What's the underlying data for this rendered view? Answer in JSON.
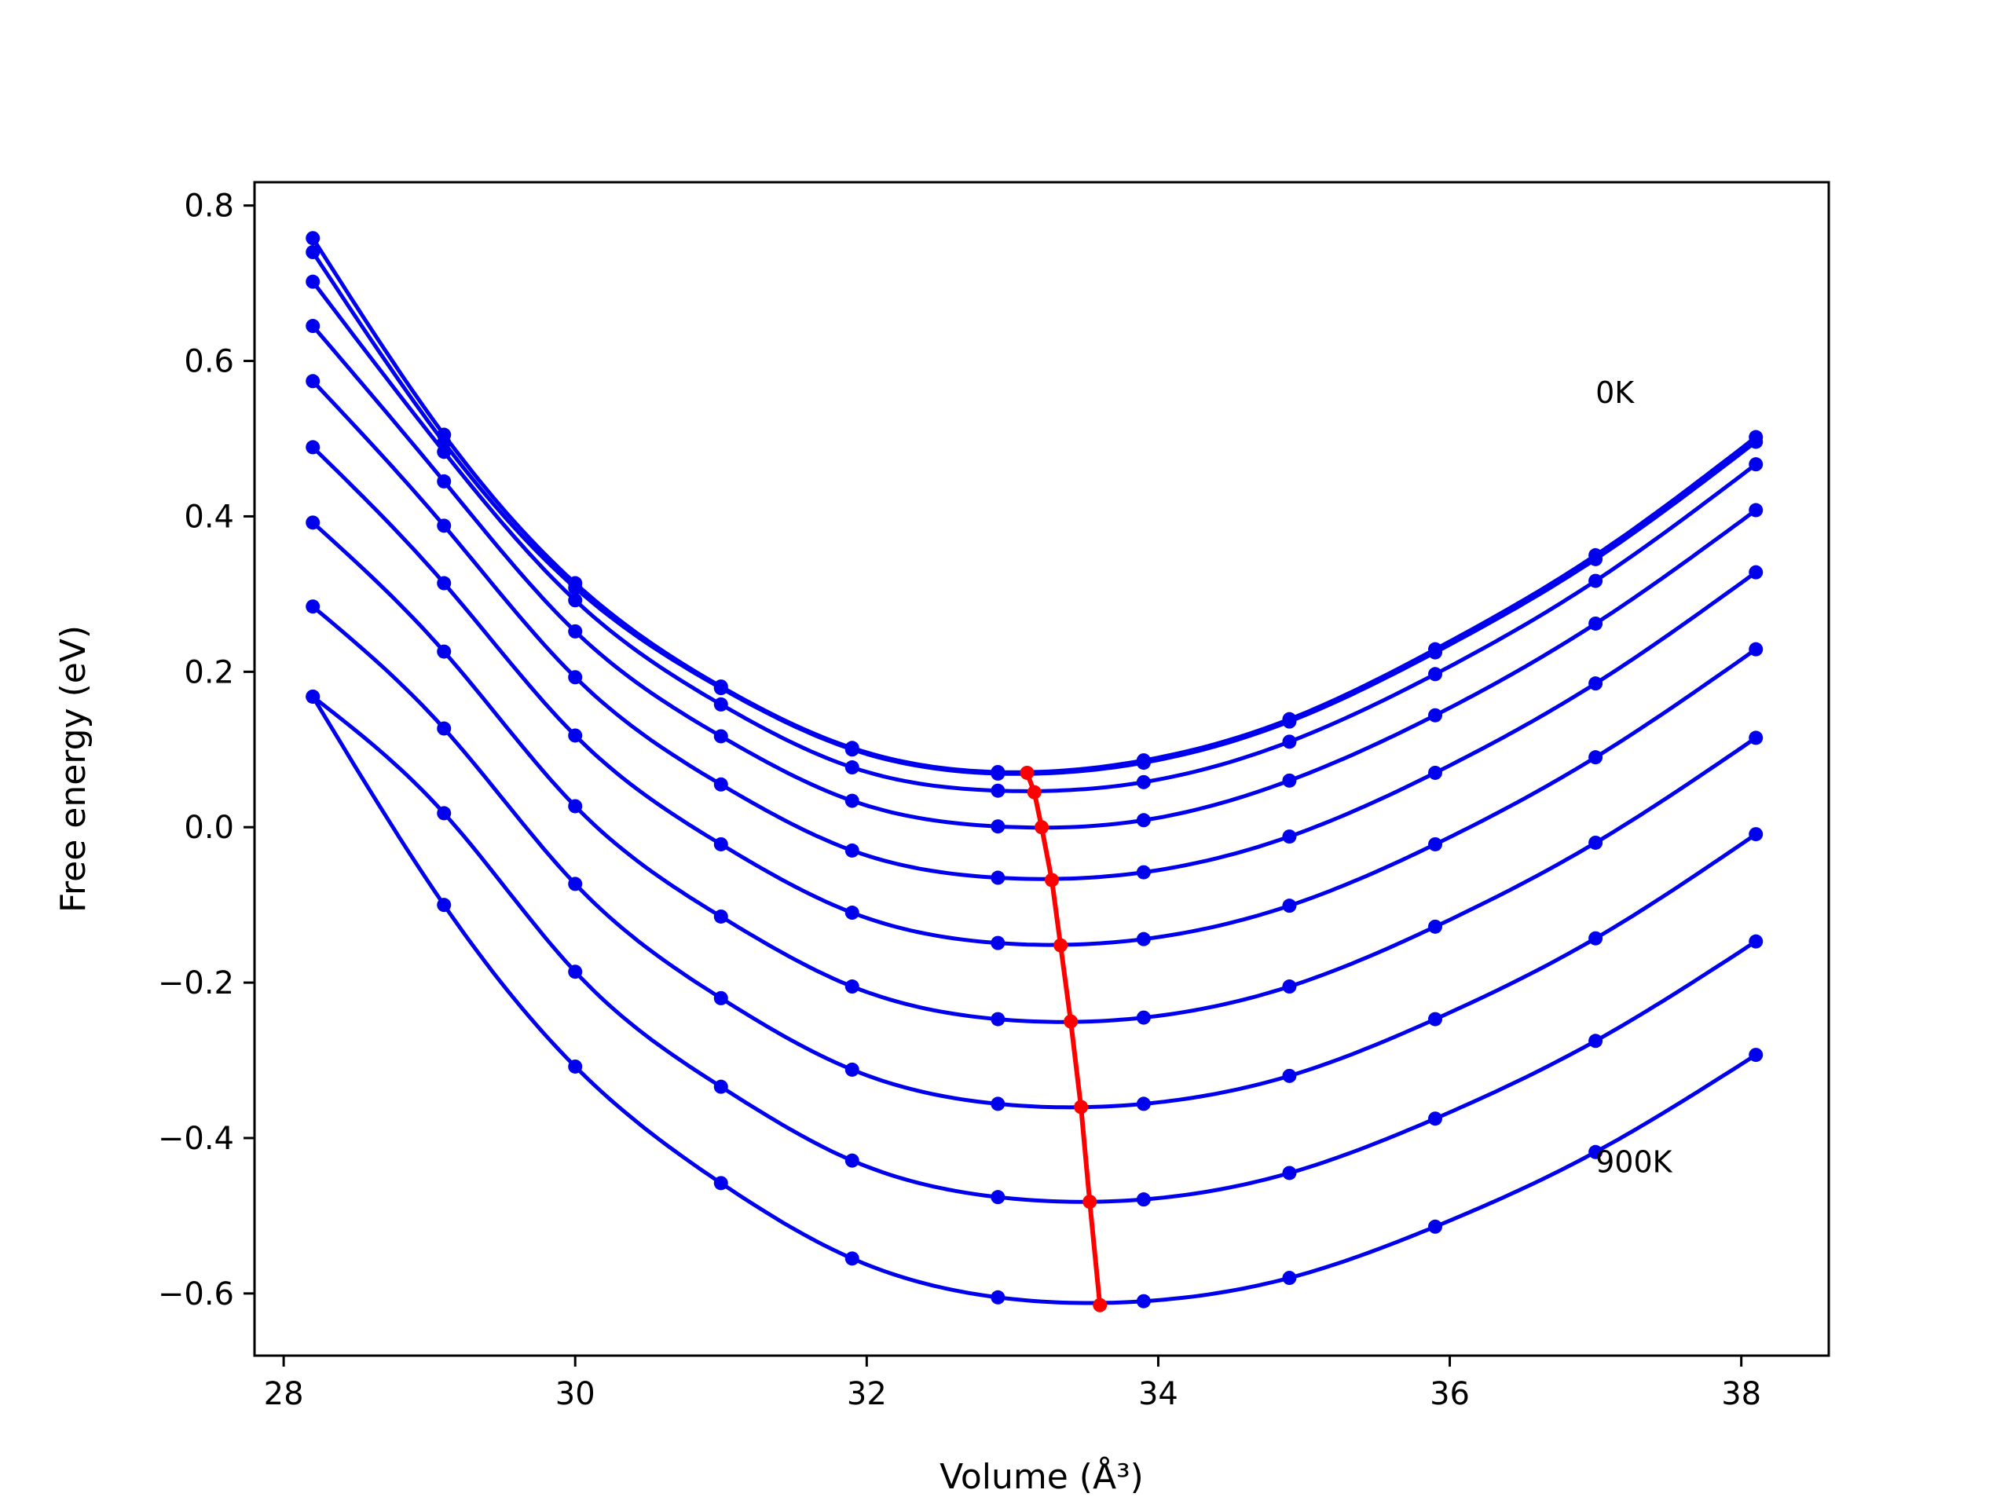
{
  "chart_data": {
    "type": "line",
    "xlabel": "Volume (Å³)",
    "ylabel": "Free energy (eV)",
    "xlim": [
      27.8,
      38.6
    ],
    "ylim": [
      -0.68,
      0.83
    ],
    "x_ticks": [
      28,
      30,
      32,
      34,
      36,
      38
    ],
    "x_tick_labels": [
      "28",
      "30",
      "32",
      "34",
      "36",
      "38"
    ],
    "y_ticks": [
      -0.6,
      -0.4,
      -0.2,
      0.0,
      0.2,
      0.4,
      0.6,
      0.8
    ],
    "y_tick_labels": [
      "−0.6",
      "−0.4",
      "−0.2",
      "0.0",
      "0.2",
      "0.4",
      "0.6",
      "0.8"
    ],
    "grid": false,
    "colors": {
      "curves": "#0000ee",
      "minimum_path": "#ff0000"
    },
    "annotations": [
      {
        "text": "0K",
        "x": 37.0,
        "y": 0.56
      },
      {
        "text": "900K",
        "x": 37.0,
        "y": -0.43
      }
    ],
    "x": [
      28.2,
      29.1,
      30.0,
      31.0,
      31.9,
      32.9,
      33.9,
      34.9,
      35.9,
      37.0,
      38.1
    ],
    "series": [
      {
        "values": [
          0.758,
          0.505,
          0.314,
          0.181,
          0.102,
          0.071,
          0.086,
          0.139,
          0.229,
          0.35,
          0.502
        ]
      },
      {
        "values": [
          0.74,
          0.495,
          0.308,
          0.179,
          0.1,
          0.069,
          0.083,
          0.136,
          0.225,
          0.345,
          0.496
        ]
      },
      {
        "values": [
          0.702,
          0.483,
          0.292,
          0.158,
          0.077,
          0.047,
          0.058,
          0.11,
          0.197,
          0.317,
          0.467
        ]
      },
      {
        "values": [
          0.645,
          0.445,
          0.252,
          0.117,
          0.034,
          0.001,
          0.009,
          0.06,
          0.144,
          0.262,
          0.408
        ]
      },
      {
        "values": [
          0.574,
          0.388,
          0.193,
          0.055,
          -0.03,
          -0.065,
          -0.058,
          -0.012,
          0.07,
          0.185,
          0.328
        ]
      },
      {
        "values": [
          0.489,
          0.314,
          0.118,
          -0.022,
          -0.11,
          -0.149,
          -0.144,
          -0.101,
          -0.022,
          0.09,
          0.229
        ]
      },
      {
        "values": [
          0.392,
          0.226,
          0.027,
          -0.115,
          -0.205,
          -0.247,
          -0.245,
          -0.205,
          -0.128,
          -0.02,
          0.115
        ]
      },
      {
        "values": [
          0.284,
          0.127,
          -0.073,
          -0.22,
          -0.312,
          -0.356,
          -0.356,
          -0.32,
          -0.247,
          -0.143,
          -0.009
        ]
      },
      {
        "values": [
          0.168,
          0.018,
          -0.186,
          -0.334,
          -0.429,
          -0.476,
          -0.479,
          -0.445,
          -0.375,
          -0.275,
          -0.147
        ]
      },
      {
        "values": [
          0.168,
          -0.1,
          -0.308,
          -0.458,
          -0.555,
          -0.605,
          -0.61,
          -0.58,
          -0.514,
          -0.418,
          -0.293
        ]
      }
    ],
    "minimum_path": {
      "x": [
        33.1,
        33.15,
        33.2,
        33.27,
        33.33,
        33.4,
        33.47,
        33.53,
        33.6
      ],
      "y": [
        0.07,
        0.045,
        0.0,
        -0.068,
        -0.152,
        -0.25,
        -0.36,
        -0.482,
        -0.615
      ]
    }
  }
}
